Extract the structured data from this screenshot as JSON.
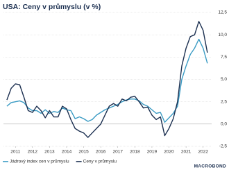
{
  "chart_data": {
    "type": "line",
    "title": "USA: Ceny v průmyslu (v %)",
    "source": "MACROBOND",
    "xlim": [
      2010.8,
      2023.0
    ],
    "xticks": [
      {
        "value": 2011.5,
        "label": "2011"
      },
      {
        "value": 2012.5,
        "label": "2012"
      },
      {
        "value": 2013.5,
        "label": "2013"
      },
      {
        "value": 2014.5,
        "label": "2014"
      },
      {
        "value": 2015.5,
        "label": "2015"
      },
      {
        "value": 2016.5,
        "label": "2016"
      },
      {
        "value": 2017.5,
        "label": "2017"
      },
      {
        "value": 2018.5,
        "label": "2018"
      },
      {
        "value": 2019.5,
        "label": "2019"
      },
      {
        "value": 2020.5,
        "label": "2020"
      },
      {
        "value": 2021.5,
        "label": "2021"
      },
      {
        "value": 2022.5,
        "label": "2022"
      }
    ],
    "ylim": [
      -2.5,
      12.5
    ],
    "yticks": [
      {
        "value": -2.5,
        "label": "-2,5"
      },
      {
        "value": 0,
        "label": "0,0"
      },
      {
        "value": 2.5,
        "label": "2,5"
      },
      {
        "value": 5,
        "label": "5,0"
      },
      {
        "value": 7.5,
        "label": "7,5"
      },
      {
        "value": 10,
        "label": "10,0"
      },
      {
        "value": 12.5,
        "label": "12,5"
      }
    ],
    "grid": true,
    "y_axis_side": "right",
    "x": [
      2011.0,
      2011.25,
      2011.5,
      2011.75,
      2012.0,
      2012.25,
      2012.5,
      2012.75,
      2013.0,
      2013.25,
      2013.5,
      2013.75,
      2014.0,
      2014.25,
      2014.5,
      2014.75,
      2015.0,
      2015.25,
      2015.5,
      2015.75,
      2016.0,
      2016.25,
      2016.5,
      2016.75,
      2017.0,
      2017.25,
      2017.5,
      2017.75,
      2018.0,
      2018.25,
      2018.5,
      2018.75,
      2019.0,
      2019.25,
      2019.5,
      2019.75,
      2020.0,
      2020.25,
      2020.5,
      2020.75,
      2021.0,
      2021.25,
      2021.5,
      2021.75,
      2022.0,
      2022.25,
      2022.5,
      2022.75
    ],
    "series": [
      {
        "name": "Jádrový index cen v průmyslu",
        "color": "#3a9bc4",
        "values": [
          2.0,
          2.4,
          2.5,
          2.6,
          2.4,
          1.8,
          1.5,
          1.5,
          1.2,
          1.6,
          1.2,
          1.4,
          1.3,
          1.8,
          1.6,
          1.5,
          0.6,
          0.8,
          0.6,
          0.3,
          0.5,
          1.0,
          1.3,
          1.6,
          1.8,
          2.0,
          2.2,
          2.5,
          2.7,
          2.8,
          2.8,
          2.6,
          2.2,
          2.0,
          1.6,
          1.2,
          1.3,
          0.2,
          0.7,
          1.2,
          2.0,
          5.0,
          6.5,
          7.8,
          8.5,
          9.5,
          8.5,
          6.8
        ]
      },
      {
        "name": "Ceny v průmyslu",
        "color": "#1b2f50",
        "values": [
          2.7,
          4.0,
          4.5,
          4.4,
          3.0,
          1.5,
          1.3,
          2.0,
          1.5,
          0.7,
          1.5,
          0.8,
          0.8,
          2.0,
          1.7,
          0.5,
          -0.5,
          -0.8,
          -1.0,
          -1.5,
          -1.0,
          -0.5,
          0.0,
          1.0,
          2.0,
          2.3,
          2.0,
          2.8,
          2.6,
          3.0,
          3.1,
          2.5,
          1.8,
          1.9,
          1.0,
          0.5,
          0.8,
          -1.3,
          -0.5,
          0.6,
          2.5,
          6.5,
          8.5,
          9.8,
          10.0,
          11.5,
          10.5,
          8.0
        ]
      }
    ]
  }
}
